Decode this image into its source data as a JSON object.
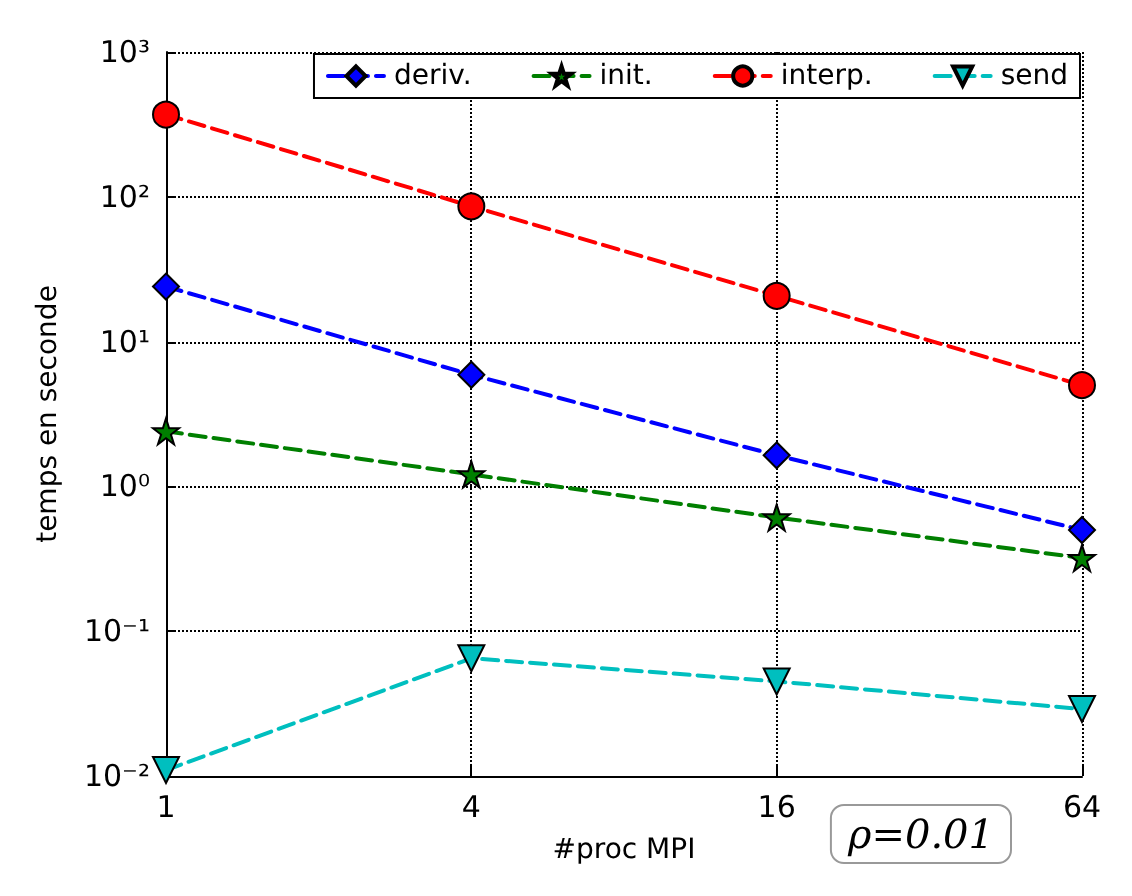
{
  "chart_data": {
    "type": "line",
    "xlabel": "#proc MPI",
    "ylabel": "temps en seconde",
    "annotations": [
      "ρ=0.01"
    ],
    "x": [
      1,
      4,
      16,
      64
    ],
    "log": "xy",
    "xlim": [
      1,
      64
    ],
    "xticks": [
      1,
      4,
      16,
      64
    ],
    "ylim": [
      0.01,
      1000
    ],
    "yticks": [
      {
        "value": 0.01,
        "label": "10⁻²"
      },
      {
        "value": 0.1,
        "label": "10⁻¹"
      },
      {
        "value": 1,
        "label": "10⁰"
      },
      {
        "value": 10,
        "label": "10¹"
      },
      {
        "value": 100,
        "label": "10²"
      },
      {
        "value": 1000,
        "label": "10³"
      }
    ],
    "grid": true,
    "legend": "top right",
    "line_style": "dashed",
    "series": [
      {
        "name": "deriv.",
        "color": "#0000ff",
        "marker": "diamond",
        "values": [
          24,
          5.9,
          1.64,
          0.5
        ]
      },
      {
        "name": "init.",
        "color": "#007f00",
        "marker": "star",
        "values": [
          2.4,
          1.21,
          0.61,
          0.32
        ]
      },
      {
        "name": "interp.",
        "color": "#ff0000",
        "marker": "circle",
        "values": [
          370,
          86,
          20.7,
          5.0
        ]
      },
      {
        "name": "send",
        "color": "#00bfbf",
        "marker": "triangle-down",
        "values": [
          0.011,
          0.065,
          0.045,
          0.029
        ]
      }
    ]
  }
}
